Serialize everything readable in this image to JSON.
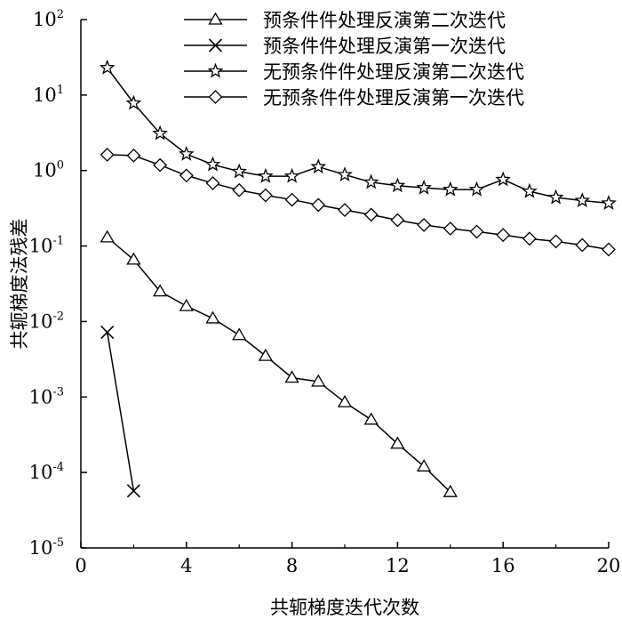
{
  "chart_data": {
    "type": "line",
    "x_axis": {
      "label": "共轭梯度迭代次数",
      "range": [
        0,
        20
      ],
      "ticks": [
        0,
        4,
        8,
        12,
        16,
        20
      ],
      "tick_labels": [
        "0",
        "4",
        "8",
        "12",
        "16",
        "20"
      ]
    },
    "y_axis": {
      "label": "共轭梯度法残差",
      "scale": "log",
      "range": [
        1e-05,
        100
      ],
      "ticks": [
        {
          "value": 100,
          "base": "10",
          "exp": "2"
        },
        {
          "value": 10,
          "base": "10",
          "exp": "1"
        },
        {
          "value": 1,
          "base": "10",
          "exp": "0"
        },
        {
          "value": 0.1,
          "base": "10",
          "exp": "-1"
        },
        {
          "value": 0.01,
          "base": "10",
          "exp": "-2"
        },
        {
          "value": 0.001,
          "base": "10",
          "exp": "-3"
        },
        {
          "value": 0.0001,
          "base": "10",
          "exp": "-4"
        },
        {
          "value": 1e-05,
          "base": "10",
          "exp": "-5"
        }
      ]
    },
    "grid": false,
    "legend_position": "top-right",
    "series": [
      {
        "name": "预条件件处理反演第二次迭代",
        "marker": "triangle",
        "x": [
          1,
          2,
          3,
          4,
          5,
          6,
          7,
          8,
          9,
          10,
          11,
          12,
          13,
          14
        ],
        "y": [
          0.13,
          0.066,
          0.025,
          0.016,
          0.011,
          0.0066,
          0.0035,
          0.0018,
          0.0016,
          0.00085,
          0.0005,
          0.00024,
          0.00012,
          5.5e-05
        ]
      },
      {
        "name": "预条件件处理反演第一次迭代",
        "marker": "x",
        "x": [
          1,
          2
        ],
        "y": [
          0.0072,
          5.7e-05
        ]
      },
      {
        "name": "无预条件件处理反演第二次迭代",
        "marker": "star",
        "x": [
          1,
          2,
          3,
          4,
          5,
          6,
          7,
          8,
          9,
          10,
          11,
          12,
          13,
          14,
          15,
          16,
          17,
          18,
          19,
          20
        ],
        "y": [
          23,
          7.8,
          3.1,
          1.65,
          1.2,
          0.97,
          0.84,
          0.84,
          1.12,
          0.88,
          0.7,
          0.63,
          0.59,
          0.56,
          0.56,
          0.76,
          0.53,
          0.44,
          0.4,
          0.37
        ]
      },
      {
        "name": "无预条件件处理反演第一次迭代",
        "marker": "diamond",
        "x": [
          1,
          2,
          3,
          4,
          5,
          6,
          7,
          8,
          9,
          10,
          11,
          12,
          13,
          14,
          15,
          16,
          17,
          18,
          19,
          20
        ],
        "y": [
          1.62,
          1.58,
          1.18,
          0.86,
          0.68,
          0.55,
          0.47,
          0.41,
          0.35,
          0.3,
          0.26,
          0.22,
          0.19,
          0.17,
          0.155,
          0.14,
          0.125,
          0.115,
          0.103,
          0.09
        ]
      }
    ]
  },
  "colors": {
    "line": "#000000",
    "marker_fill": "#ffffff",
    "background": "#ffffff"
  }
}
